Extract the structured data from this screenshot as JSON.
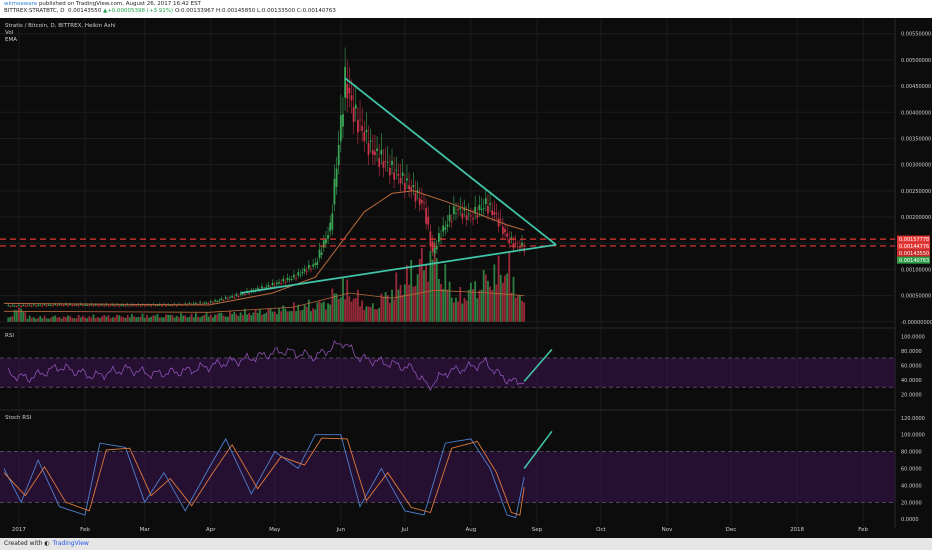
{
  "header": {
    "author": "wkmoeware",
    "published": "published on TradingView.com, August 26, 2017 16:42 EST",
    "symbol_line": "BITTREX:STRATBTC, D",
    "last": "0.00143550",
    "change": "+0.00005398 (+3.91%)",
    "open": "O:0.00133967",
    "high": "H:0.00145850",
    "low": "L:0.00133500",
    "close": "C:0.00140763"
  },
  "footer": {
    "created_with": "Created with",
    "brand": "TradingView"
  },
  "colors": {
    "background": "#0c0c0c",
    "up": "#3aa756",
    "down": "#c9344a",
    "ema": "#b86a3c",
    "trendline": "#41c3a8",
    "dashed": "#e53935",
    "oscillator": "#8e51b5",
    "band_fill": "#3a1450",
    "stoch_k": "#4f7fcf",
    "stoch_d": "#e07a3c",
    "axis_text": "#cfcfcf"
  },
  "chart_data": [
    {
      "type": "candlestick",
      "title": "Stratis / Bitcoin, D, BITTREX, Heikin Ashi",
      "legend": [
        "Vol",
        "EMA"
      ],
      "x": [
        "2017-01-01",
        "2017-02-01",
        "2017-03-01",
        "2017-04-01",
        "2017-05-01",
        "2017-06-01",
        "2017-07-01",
        "2017-08-01",
        "2017-09-01",
        "2017-10-01",
        "2017-11-01",
        "2017-12-01",
        "2018-01-01",
        "2018-02-01"
      ],
      "x_tick_labels": [
        "2017",
        "Feb",
        "Mar",
        "Apr",
        "May",
        "Jun",
        "Jul",
        "Aug",
        "Sep",
        "Oct",
        "Nov",
        "Dec",
        "2018",
        "Feb"
      ],
      "y_ticks": [
        0,
        0.0005,
        0.001,
        0.0015,
        0.002,
        0.0025,
        0.003,
        0.0035,
        0.004,
        0.0045,
        0.005,
        0.0055
      ],
      "y_tick_labels": [
        "-0.00000000",
        "0.00050000",
        "0.00100000",
        "",
        "0.00200000",
        "0.00250000",
        "0.00300000",
        "0.00350000",
        "0.00400000",
        "0.00450000",
        "0.00500000",
        "0.00550000"
      ],
      "ylim": [
        -0.0001,
        0.0058
      ],
      "price_path": [
        [
          "2016-12-25",
          0.0003
        ],
        [
          "2017-01-20",
          0.00032
        ],
        [
          "2017-02-20",
          0.00031
        ],
        [
          "2017-03-15",
          0.00032
        ],
        [
          "2017-03-31",
          0.00036
        ],
        [
          "2017-04-15",
          0.00052
        ],
        [
          "2017-04-30",
          0.0007
        ],
        [
          "2017-05-10",
          0.00085
        ],
        [
          "2017-05-20",
          0.0011
        ],
        [
          "2017-05-27",
          0.0018
        ],
        [
          "2017-06-01",
          0.0038
        ],
        [
          "2017-06-03",
          0.0046
        ],
        [
          "2017-06-07",
          0.004
        ],
        [
          "2017-06-15",
          0.0033
        ],
        [
          "2017-06-25",
          0.0029
        ],
        [
          "2017-07-05",
          0.0025
        ],
        [
          "2017-07-10",
          0.0022
        ],
        [
          "2017-07-14",
          0.0013
        ],
        [
          "2017-07-18",
          0.0017
        ],
        [
          "2017-07-25",
          0.00215
        ],
        [
          "2017-08-01",
          0.002
        ],
        [
          "2017-08-08",
          0.00225
        ],
        [
          "2017-08-13",
          0.002
        ],
        [
          "2017-08-18",
          0.0016
        ],
        [
          "2017-08-22",
          0.00145
        ],
        [
          "2017-08-26",
          0.00143
        ]
      ],
      "ema_path": [
        [
          "2016-12-25",
          0.00035
        ],
        [
          "2017-03-31",
          0.00032
        ],
        [
          "2017-04-30",
          0.00055
        ],
        [
          "2017-05-20",
          0.00085
        ],
        [
          "2017-06-01",
          0.0015
        ],
        [
          "2017-06-12",
          0.0021
        ],
        [
          "2017-06-25",
          0.00245
        ],
        [
          "2017-07-05",
          0.0025
        ],
        [
          "2017-07-20",
          0.0023
        ],
        [
          "2017-08-05",
          0.00205
        ],
        [
          "2017-08-18",
          0.00185
        ],
        [
          "2017-08-26",
          0.00175
        ]
      ],
      "volume_path": [
        [
          "2016-12-25",
          8e-05
        ],
        [
          "2017-01-03",
          0.0004
        ],
        [
          "2017-01-05",
          0.00012
        ],
        [
          "2017-03-31",
          0.00018
        ],
        [
          "2017-04-30",
          0.0003
        ],
        [
          "2017-05-25",
          0.0005
        ],
        [
          "2017-06-02",
          0.00095
        ],
        [
          "2017-06-15",
          0.00035
        ],
        [
          "2017-07-14",
          0.0018
        ],
        [
          "2017-07-25",
          0.0006
        ],
        [
          "2017-08-18",
          0.0015
        ],
        [
          "2017-08-26",
          0.0004
        ]
      ],
      "volume_ema_path": [
        [
          "2016-12-25",
          0.0002
        ],
        [
          "2017-03-31",
          0.00018
        ],
        [
          "2017-05-10",
          0.00028
        ],
        [
          "2017-06-05",
          0.00055
        ],
        [
          "2017-06-25",
          0.00045
        ],
        [
          "2017-07-15",
          0.0006
        ],
        [
          "2017-08-10",
          0.00055
        ],
        [
          "2017-08-26",
          0.0005
        ]
      ],
      "trendlines": [
        [
          [
            "2017-06-03",
            0.00465
          ],
          [
            "2017-09-10",
            0.00147
          ]
        ],
        [
          [
            "2017-04-15",
            0.00055
          ],
          [
            "2017-09-10",
            0.00147
          ]
        ]
      ],
      "horizontal_levels": [
        0.00157778,
        0.00144776
      ],
      "price_labels": [
        {
          "value": 0.00157778,
          "text": "0.00157778",
          "kind": "dashed"
        },
        {
          "value": 0.00144776,
          "text": "0.00144776",
          "kind": "dashed"
        },
        {
          "value": 0.0014355,
          "text": "0.00143550",
          "kind": "last"
        },
        {
          "value": 0.00140763,
          "text": "0.00140763",
          "kind": "close"
        }
      ]
    },
    {
      "type": "line",
      "title": "RSI",
      "ylim": [
        0,
        110
      ],
      "y_ticks": [
        20,
        40,
        60,
        80,
        100
      ],
      "y_tick_labels": [
        "20.0000",
        "40.0000",
        "60.0000",
        "80.0000",
        "100.0000"
      ],
      "band": [
        30,
        70
      ],
      "series_path": [
        [
          "2016-12-25",
          50
        ],
        [
          "2017-01-05",
          42
        ],
        [
          "2017-01-20",
          58
        ],
        [
          "2017-02-05",
          45
        ],
        [
          "2017-02-20",
          55
        ],
        [
          "2017-03-05",
          48
        ],
        [
          "2017-03-20",
          52
        ],
        [
          "2017-04-05",
          62
        ],
        [
          "2017-04-20",
          70
        ],
        [
          "2017-05-05",
          80
        ],
        [
          "2017-05-20",
          72
        ],
        [
          "2017-06-02",
          92
        ],
        [
          "2017-06-10",
          70
        ],
        [
          "2017-06-25",
          62
        ],
        [
          "2017-07-05",
          55
        ],
        [
          "2017-07-12",
          30
        ],
        [
          "2017-07-20",
          50
        ],
        [
          "2017-08-01",
          58
        ],
        [
          "2017-08-08",
          64
        ],
        [
          "2017-08-15",
          45
        ],
        [
          "2017-08-22",
          36
        ],
        [
          "2017-08-26",
          40
        ]
      ],
      "annotation_line": [
        [
          "2017-08-26",
          38
        ],
        [
          "2017-09-08",
          82
        ]
      ]
    },
    {
      "type": "line",
      "title": "Stoch RSI",
      "ylim": [
        -8,
        128
      ],
      "y_ticks": [
        0,
        20,
        40,
        60,
        80,
        100,
        120
      ],
      "y_tick_labels": [
        "0.0000",
        "20.0000",
        "40.0000",
        "60.0000",
        "80.0000",
        "100.0000",
        "120.0000"
      ],
      "band": [
        20,
        80
      ],
      "series": [
        {
          "name": "K",
          "path": [
            [
              "2016-12-25",
              60
            ],
            [
              "2017-01-02",
              20
            ],
            [
              "2017-01-10",
              70
            ],
            [
              "2017-01-20",
              15
            ],
            [
              "2017-02-01",
              5
            ],
            [
              "2017-02-08",
              90
            ],
            [
              "2017-02-20",
              85
            ],
            [
              "2017-03-01",
              20
            ],
            [
              "2017-03-10",
              55
            ],
            [
              "2017-03-20",
              10
            ],
            [
              "2017-03-31",
              60
            ],
            [
              "2017-04-08",
              95
            ],
            [
              "2017-04-20",
              30
            ],
            [
              "2017-05-01",
              80
            ],
            [
              "2017-05-12",
              60
            ],
            [
              "2017-05-20",
              100
            ],
            [
              "2017-06-01",
              100
            ],
            [
              "2017-06-10",
              15
            ],
            [
              "2017-06-20",
              60
            ],
            [
              "2017-07-01",
              10
            ],
            [
              "2017-07-10",
              5
            ],
            [
              "2017-07-20",
              90
            ],
            [
              "2017-08-01",
              95
            ],
            [
              "2017-08-10",
              60
            ],
            [
              "2017-08-18",
              5
            ],
            [
              "2017-08-22",
              2
            ],
            [
              "2017-08-26",
              50
            ]
          ]
        },
        {
          "name": "D",
          "path": [
            [
              "2016-12-25",
              55
            ],
            [
              "2017-01-04",
              28
            ],
            [
              "2017-01-13",
              62
            ],
            [
              "2017-01-23",
              20
            ],
            [
              "2017-02-03",
              10
            ],
            [
              "2017-02-11",
              82
            ],
            [
              "2017-02-22",
              84
            ],
            [
              "2017-03-04",
              28
            ],
            [
              "2017-03-13",
              48
            ],
            [
              "2017-03-23",
              16
            ],
            [
              "2017-04-02",
              55
            ],
            [
              "2017-04-11",
              88
            ],
            [
              "2017-04-23",
              36
            ],
            [
              "2017-05-04",
              74
            ],
            [
              "2017-05-15",
              64
            ],
            [
              "2017-05-23",
              96
            ],
            [
              "2017-06-04",
              95
            ],
            [
              "2017-06-13",
              22
            ],
            [
              "2017-06-23",
              55
            ],
            [
              "2017-07-04",
              14
            ],
            [
              "2017-07-13",
              8
            ],
            [
              "2017-07-23",
              84
            ],
            [
              "2017-08-04",
              92
            ],
            [
              "2017-08-13",
              55
            ],
            [
              "2017-08-20",
              8
            ],
            [
              "2017-08-24",
              5
            ],
            [
              "2017-08-26",
              38
            ]
          ]
        }
      ],
      "annotation_line": [
        [
          "2017-08-26",
          60
        ],
        [
          "2017-09-08",
          104
        ]
      ]
    }
  ]
}
